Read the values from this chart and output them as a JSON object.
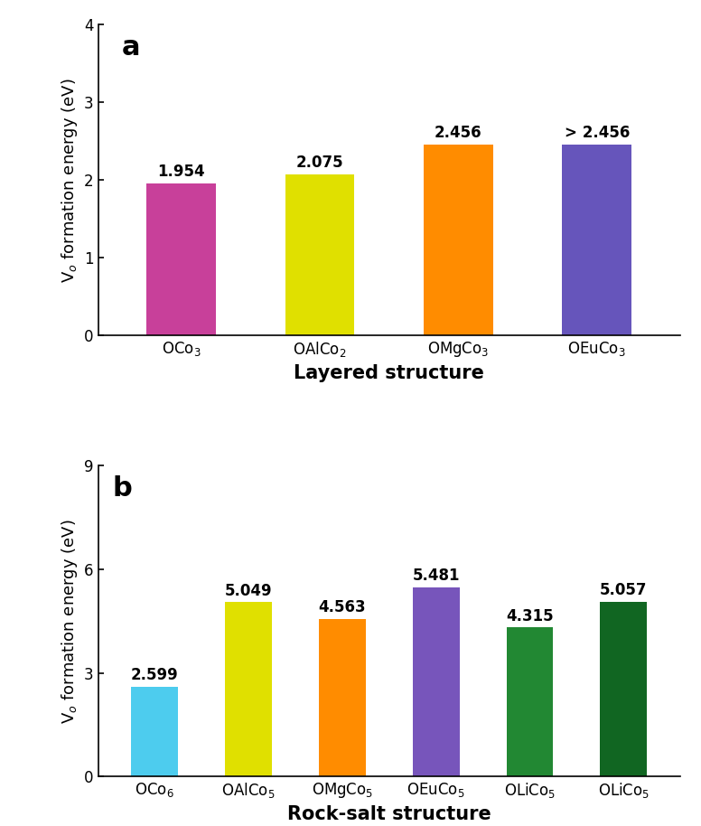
{
  "panel_a": {
    "categories": [
      "OCo$_3$",
      "OAlCo$_2$",
      "OMgCo$_3$",
      "OEuCo$_3$"
    ],
    "values": [
      1.954,
      2.075,
      2.456,
      2.456
    ],
    "labels": [
      "1.954",
      "2.075",
      "2.456",
      "> 2.456"
    ],
    "colors": [
      "#C8409A",
      "#E0E000",
      "#FF8C00",
      "#6655BB"
    ],
    "ylabel": "V$_o$ formation energy (eV)",
    "xlabel": "Layered structure",
    "panel_label": "a",
    "ylim": [
      0,
      4
    ],
    "yticks": [
      0,
      1,
      2,
      3,
      4
    ]
  },
  "panel_b": {
    "categories": [
      "OCo$_6$",
      "OAlCo$_5$",
      "OMgCo$_5$",
      "OEuCo$_5$",
      "OLiCo$_5$",
      "OLiCo$_5$"
    ],
    "values": [
      2.599,
      5.049,
      4.563,
      5.481,
      4.315,
      5.057
    ],
    "labels": [
      "2.599",
      "5.049",
      "4.563",
      "5.481",
      "4.315",
      "5.057"
    ],
    "colors": [
      "#4DCCEE",
      "#E0E000",
      "#FF8C00",
      "#7755BB",
      "#228833",
      "#116622"
    ],
    "ylabel": "V$_o$ formation energy (eV)",
    "xlabel": "Rock-salt structure",
    "panel_label": "b",
    "ylim": [
      0,
      9
    ],
    "yticks": [
      0,
      3,
      6,
      9
    ]
  },
  "bar_width": 0.5,
  "label_fontsize": 12,
  "tick_fontsize": 12,
  "ylabel_fontsize": 13,
  "xlabel_fontsize": 15,
  "panel_label_fontsize": 22
}
